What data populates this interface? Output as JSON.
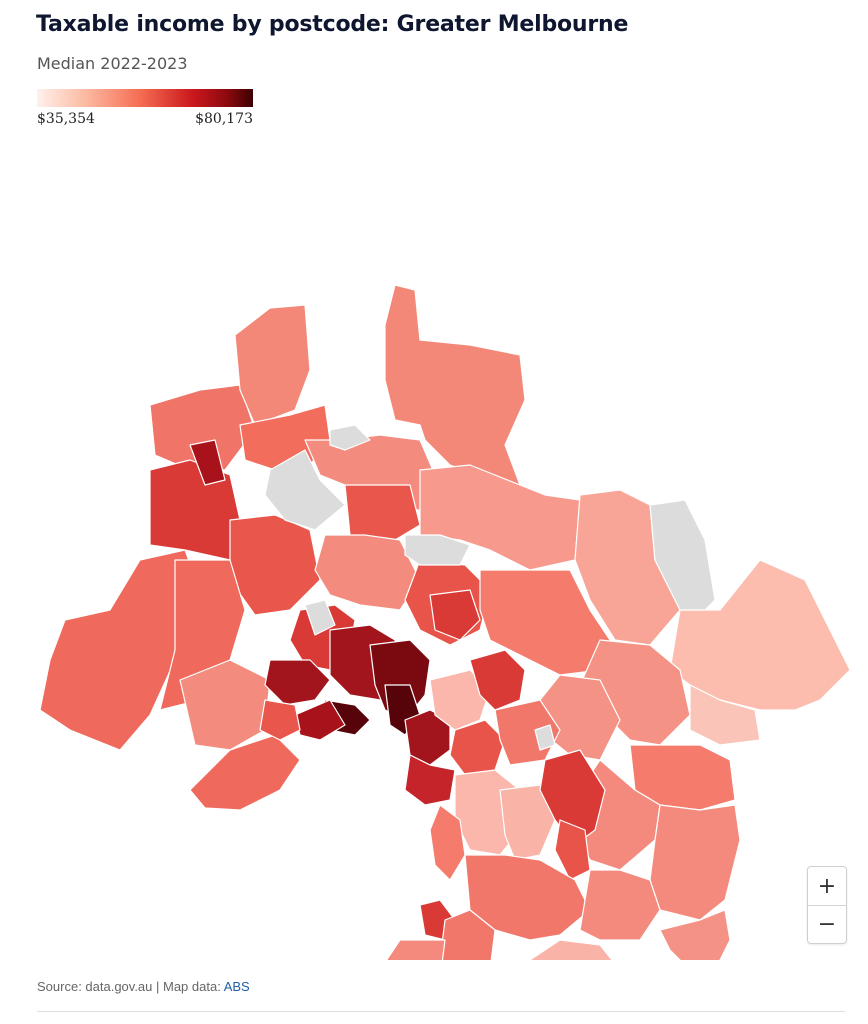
{
  "title": "Taxable income by postcode: Greater Melbourne",
  "subtitle": "Median 2022-2023",
  "legend": {
    "min_label": "$35,354",
    "max_label": "$80,173",
    "colors": [
      "#fff1ec",
      "#fcbba3",
      "#f56c52",
      "#cb181d",
      "#8c0a0f",
      "#3b0003"
    ]
  },
  "map": {
    "region": "Greater Melbourne",
    "no_data_color": "#dcdcdc",
    "border_color": "#ffffff",
    "water_color": "#ffffff",
    "regions": [
      {
        "id": "nw-1",
        "color": "#f26d5c"
      },
      {
        "id": "nw-2",
        "color": "#f07568"
      },
      {
        "id": "north-1",
        "color": "#f38878"
      },
      {
        "id": "north-2",
        "color": "#f38c7f"
      },
      {
        "id": "ne-1",
        "color": "#f79a8d"
      },
      {
        "id": "east-1",
        "color": "#f8a597"
      },
      {
        "id": "far-east-1",
        "color": "#fcbcae"
      },
      {
        "id": "far-east-2",
        "color": "#fbc4b8"
      },
      {
        "id": "west-1",
        "color": "#e8564c"
      },
      {
        "id": "west-2",
        "color": "#ef6a5c"
      },
      {
        "id": "west-3",
        "color": "#d93a36"
      },
      {
        "id": "west-4",
        "color": "#a8121a"
      },
      {
        "id": "inner-1",
        "color": "#7a0a10"
      },
      {
        "id": "inner-2",
        "color": "#56040a"
      },
      {
        "id": "inner-3",
        "color": "#a3151d"
      },
      {
        "id": "bay-east-1",
        "color": "#c4242a"
      },
      {
        "id": "bay-east-2",
        "color": "#fbb7ab"
      },
      {
        "id": "se-1",
        "color": "#f57b6c"
      },
      {
        "id": "se-2",
        "color": "#f49285"
      },
      {
        "id": "se-3",
        "color": "#e85449"
      },
      {
        "id": "pen-1",
        "color": "#f0776a"
      },
      {
        "id": "pen-2",
        "color": "#f9b3a7"
      },
      {
        "id": "pen-3",
        "color": "#f48a7d"
      },
      {
        "id": "pen-tip",
        "color": "#6b0509"
      },
      {
        "id": "mornington",
        "color": "#fbc9be"
      },
      {
        "id": "nd-1",
        "color": "#dcdcdc"
      },
      {
        "id": "nd-2",
        "color": "#dcdcdc"
      },
      {
        "id": "nd-3",
        "color": "#dcdcdc"
      }
    ]
  },
  "zoom": {
    "in_label": "+",
    "out_label": "−"
  },
  "source": {
    "prefix": "Source: data.gov.au | Map data: ",
    "link_text": "ABS"
  }
}
